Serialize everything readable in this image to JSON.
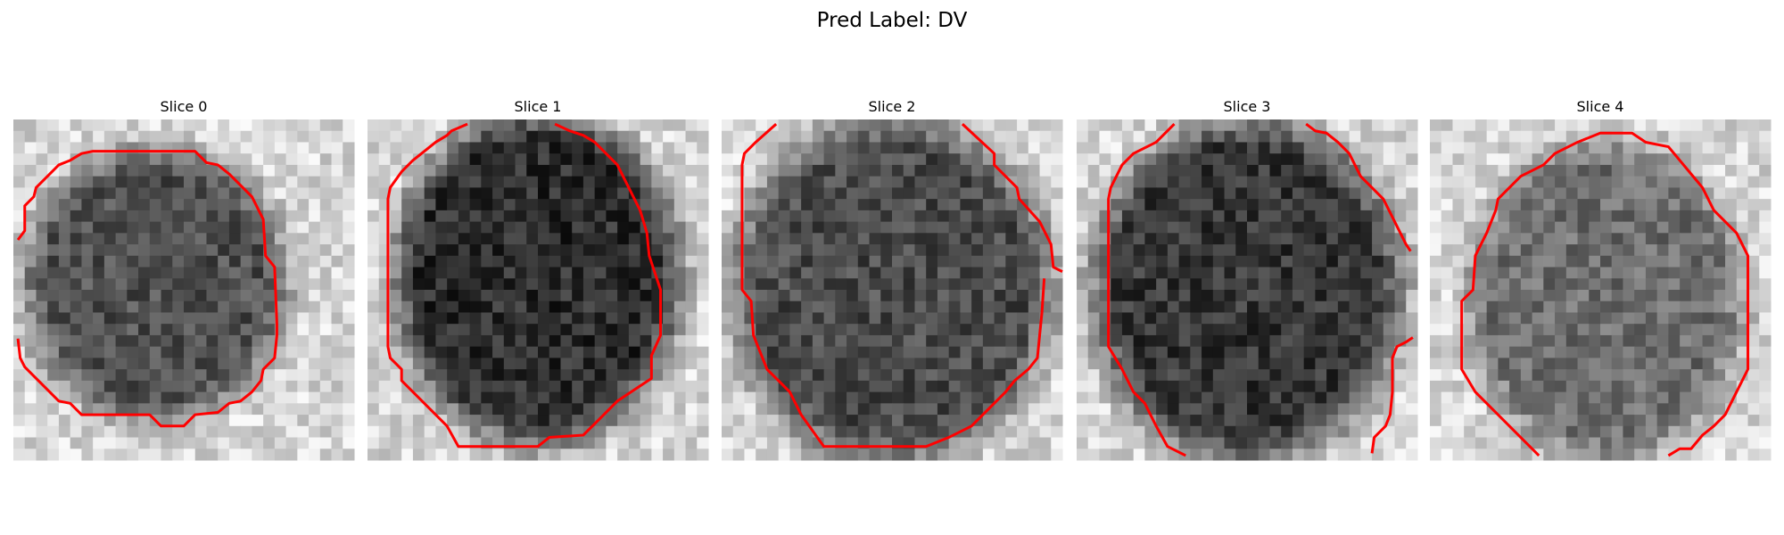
{
  "header": {
    "title": "Pred Label: DV"
  },
  "panels": [
    {
      "title": "Slice 0"
    },
    {
      "title": "Slice 1"
    },
    {
      "title": "Slice 2"
    },
    {
      "title": "Slice 3"
    },
    {
      "title": "Slice 4"
    }
  ]
}
